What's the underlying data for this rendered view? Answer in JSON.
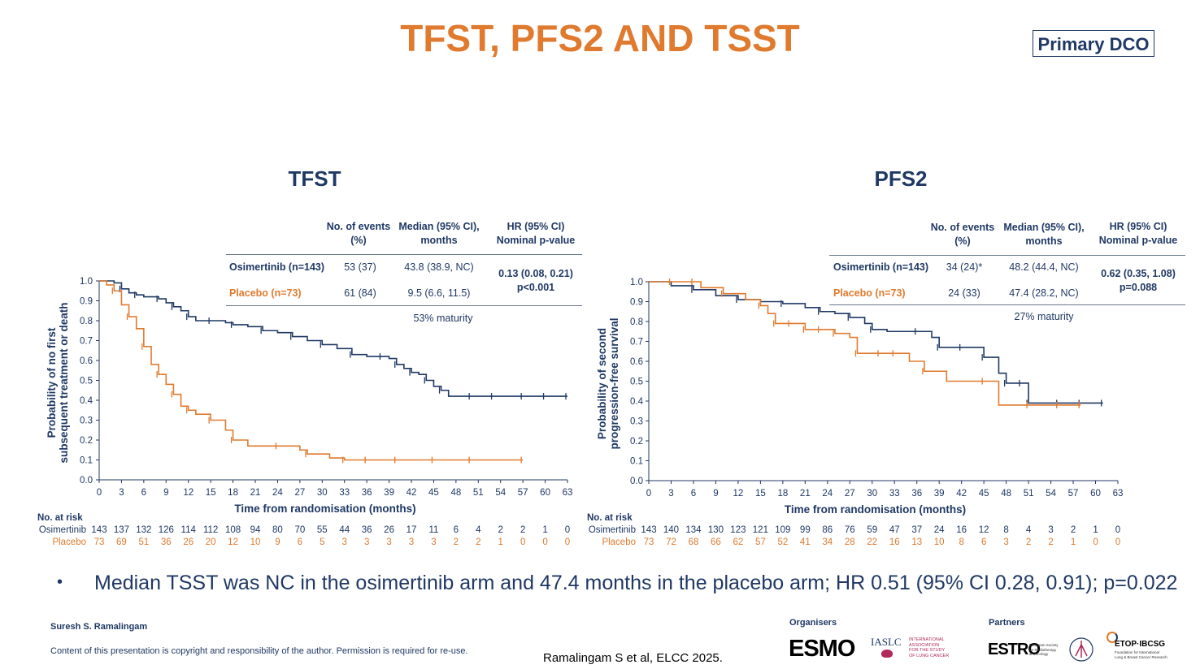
{
  "header": {
    "title": "TFST, PFS2 AND TSST",
    "badge": "Primary DCO"
  },
  "panels": [
    {
      "title": "TFST",
      "table": {
        "col_events": "No. of events (%)",
        "col_median": "Median (95% CI), months",
        "col_hr": "HR (95% CI) Nominal p-value",
        "osimertinib": {
          "label": "Osimertinib (n=143)",
          "events": "53 (37)",
          "median": "43.8 (38.9, NC)"
        },
        "placebo": {
          "label": "Placebo (n=73)",
          "events": "61 (84)",
          "median": "9.5 (6.6, 11.5)"
        },
        "hr": "0.13 (0.08, 0.21)",
        "p": "p<0.001",
        "maturity": "53% maturity"
      },
      "ylabel": "Probability of no first subsequent treatment or death",
      "ylabel_lines": [
        "Probability of no first",
        "subsequent treatment or death"
      ],
      "xlabel": "Time from randomisation (months)",
      "risk": {
        "heading": "No. at risk",
        "osimertinib_label": "Osimertinib",
        "placebo_label": "Placebo",
        "osimertinib": [
          "143",
          "137",
          "132",
          "126",
          "114",
          "112",
          "108",
          "94",
          "80",
          "70",
          "55",
          "44",
          "36",
          "26",
          "17",
          "11",
          "6",
          "4",
          "2",
          "2",
          "1",
          "0"
        ],
        "placebo": [
          "73",
          "69",
          "51",
          "36",
          "26",
          "20",
          "12",
          "10",
          "9",
          "6",
          "5",
          "3",
          "3",
          "3",
          "3",
          "3",
          "2",
          "2",
          "1",
          "0",
          "0",
          "0"
        ]
      }
    },
    {
      "title": "PFS2",
      "table": {
        "col_events": "No. of events (%)",
        "col_median": "Median (95% CI), months",
        "col_hr": "HR (95% CI) Nominal p-value",
        "osimertinib": {
          "label": "Osimertinib (n=143)",
          "events": "34 (24)*",
          "median": "48.2 (44.4, NC)"
        },
        "placebo": {
          "label": "Placebo (n=73)",
          "events": "24 (33)",
          "median": "47.4 (28.2, NC)"
        },
        "hr": "0.62 (0.35, 1.08)",
        "p": "p=0.088",
        "maturity": "27% maturity"
      },
      "ylabel": "Probability of second progression-free survival",
      "ylabel_lines": [
        "Probability of second",
        "progression-free survival"
      ],
      "xlabel": "Time from randomisation (months)",
      "risk": {
        "heading": "No. at risk",
        "osimertinib_label": "Osimertinib",
        "placebo_label": "Placebo",
        "osimertinib": [
          "143",
          "140",
          "134",
          "130",
          "123",
          "121",
          "109",
          "99",
          "86",
          "76",
          "59",
          "47",
          "37",
          "24",
          "16",
          "12",
          "8",
          "4",
          "3",
          "2",
          "1",
          "0"
        ],
        "placebo": [
          "73",
          "72",
          "68",
          "66",
          "62",
          "57",
          "52",
          "41",
          "34",
          "28",
          "22",
          "16",
          "13",
          "10",
          "8",
          "6",
          "3",
          "2",
          "2",
          "1",
          "0",
          "0"
        ]
      }
    }
  ],
  "chart_data": [
    {
      "type": "line",
      "title": "TFST",
      "xlabel": "Time from randomisation (months)",
      "ylabel": "Probability of no first subsequent treatment or death",
      "xlim": [
        0,
        63
      ],
      "ylim": [
        0,
        1.0
      ],
      "xticks": [
        "0",
        "3",
        "6",
        "9",
        "12",
        "15",
        "18",
        "21",
        "24",
        "27",
        "30",
        "33",
        "36",
        "39",
        "42",
        "45",
        "48",
        "51",
        "54",
        "57",
        "60",
        "63"
      ],
      "yticks": [
        "0.0",
        "0.1",
        "0.2",
        "0.3",
        "0.4",
        "0.5",
        "0.6",
        "0.7",
        "0.8",
        "0.9",
        "1.0"
      ],
      "series": [
        {
          "name": "Osimertinib",
          "color": "#1f3864",
          "x": [
            0,
            2,
            3,
            4,
            5,
            6,
            8,
            9,
            10,
            11,
            12,
            13,
            15,
            17,
            18,
            20,
            22,
            24,
            26,
            28,
            30,
            32,
            34,
            36,
            38,
            39,
            40,
            41,
            42,
            43,
            44,
            45,
            46,
            47,
            50,
            53,
            57,
            60,
            63
          ],
          "y": [
            1.0,
            0.99,
            0.96,
            0.94,
            0.93,
            0.92,
            0.91,
            0.89,
            0.87,
            0.85,
            0.82,
            0.8,
            0.8,
            0.79,
            0.78,
            0.77,
            0.75,
            0.74,
            0.72,
            0.7,
            0.68,
            0.66,
            0.63,
            0.62,
            0.62,
            0.61,
            0.58,
            0.56,
            0.54,
            0.53,
            0.5,
            0.47,
            0.45,
            0.42,
            0.42,
            0.42,
            0.42,
            0.42,
            0.42
          ]
        },
        {
          "name": "Placebo",
          "color": "#e07a2e",
          "x": [
            0,
            1,
            2,
            3,
            4,
            5,
            6,
            7,
            8,
            9,
            10,
            11,
            12,
            13,
            15,
            17,
            18,
            20,
            24,
            27,
            28,
            31,
            33,
            36,
            40,
            45,
            50,
            57
          ],
          "y": [
            1.0,
            0.98,
            0.95,
            0.88,
            0.82,
            0.76,
            0.67,
            0.58,
            0.53,
            0.48,
            0.43,
            0.37,
            0.35,
            0.33,
            0.3,
            0.25,
            0.2,
            0.17,
            0.17,
            0.15,
            0.13,
            0.11,
            0.1,
            0.1,
            0.1,
            0.1,
            0.1,
            0.1
          ]
        }
      ]
    },
    {
      "type": "line",
      "title": "PFS2",
      "xlabel": "Time from randomisation (months)",
      "ylabel": "Probability of second progression-free survival",
      "xlim": [
        0,
        63
      ],
      "ylim": [
        0,
        1.0
      ],
      "xticks": [
        "0",
        "3",
        "6",
        "9",
        "12",
        "15",
        "18",
        "21",
        "24",
        "27",
        "30",
        "33",
        "36",
        "39",
        "42",
        "45",
        "48",
        "51",
        "54",
        "57",
        "60",
        "63"
      ],
      "yticks": [
        "0.0",
        "0.1",
        "0.2",
        "0.3",
        "0.4",
        "0.5",
        "0.6",
        "0.7",
        "0.8",
        "0.9",
        "1.0"
      ],
      "series": [
        {
          "name": "Osimertinib",
          "color": "#1f3864",
          "x": [
            0,
            3,
            6,
            9,
            12,
            15,
            18,
            21,
            23,
            25,
            27,
            29,
            30,
            32,
            36,
            38,
            39,
            42,
            45,
            47,
            48,
            50,
            51,
            55,
            58,
            61
          ],
          "y": [
            1.0,
            0.98,
            0.96,
            0.93,
            0.91,
            0.9,
            0.89,
            0.87,
            0.85,
            0.84,
            0.82,
            0.79,
            0.76,
            0.75,
            0.75,
            0.72,
            0.67,
            0.67,
            0.62,
            0.54,
            0.49,
            0.49,
            0.39,
            0.39,
            0.39,
            0.39
          ]
        },
        {
          "name": "Placebo",
          "color": "#e07a2e",
          "x": [
            0,
            3,
            6,
            7,
            10,
            13,
            15,
            16,
            17,
            19,
            21,
            23,
            25,
            27,
            28,
            31,
            33,
            35,
            37,
            40,
            45,
            47,
            51,
            55,
            58
          ],
          "y": [
            1.0,
            1.0,
            1.0,
            0.97,
            0.94,
            0.91,
            0.88,
            0.84,
            0.79,
            0.79,
            0.76,
            0.76,
            0.74,
            0.72,
            0.64,
            0.64,
            0.64,
            0.6,
            0.55,
            0.5,
            0.5,
            0.38,
            0.38,
            0.38,
            0.38
          ]
        }
      ]
    }
  ],
  "footer": {
    "bullet": "Median TSST was NC in the osimertinib arm and 47.4 months in the placebo arm; HR 0.51 (95% CI 0.28, 0.91); p=0.022",
    "author": "Suresh S. Ramalingam",
    "copyright": "Content of this presentation is copyright and responsibility of the author. Permission is required for re-use.",
    "citation": "Ramalingam S et al, ELCC 2025.",
    "organisers_label": "Organisers",
    "partners_label": "Partners",
    "logos": {
      "esmo": "ESMO",
      "iaslc": "IASLC",
      "iaslc_sub": [
        "INTERNATIONAL",
        "ASSOCIATION",
        "FOR THE STUDY",
        "OF LUNG CANCER"
      ],
      "estro": "ESTRO",
      "estro_sub": [
        "European Society",
        "for Radiotherapy",
        "& Oncology"
      ],
      "etop": "ETOP·IBCSG",
      "etop_sub": [
        "Foundation for International",
        "Lung & Breast Cancer Research"
      ]
    }
  },
  "colors": {
    "navy": "#1f3864",
    "orange": "#e07a2e"
  }
}
